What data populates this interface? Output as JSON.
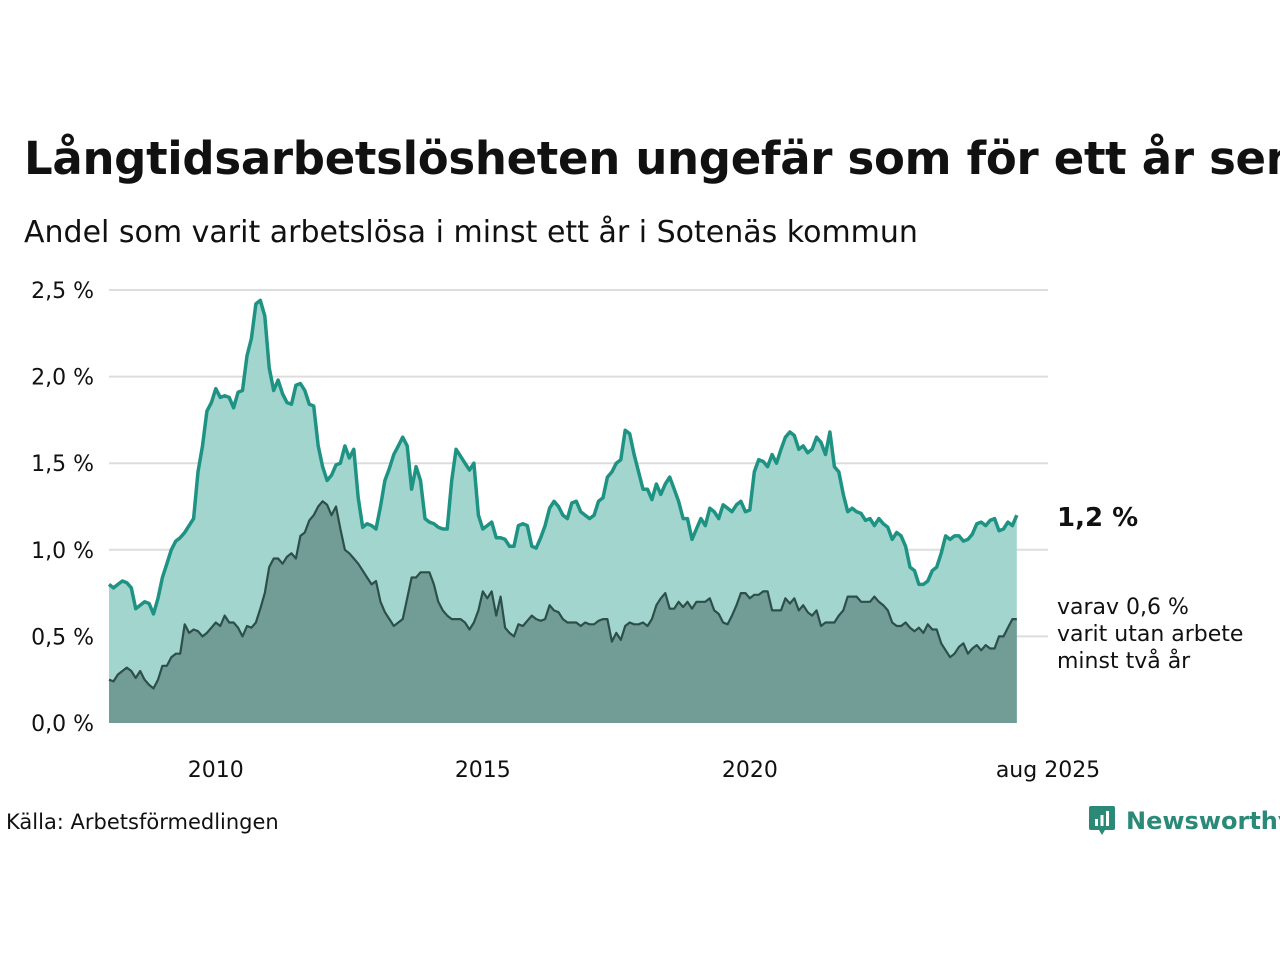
{
  "title": "Långtidsarbetslösheten ungefär som för ett år sen",
  "subtitle": "Andel som varit arbetslösa i minst ett år i Sotenäs kommun",
  "source": "Källa: Arbetsförmedlingen",
  "brand": "Newsworthy",
  "colors": {
    "series1_line": "#1f9383",
    "series1_fill": "#a3d5cf",
    "series2_line": "#2d4f49",
    "series2_fill": "#719d96",
    "grid": "#dddddd",
    "brand": "#2a8a77"
  },
  "chart_data": {
    "type": "area",
    "title": "Långtidsarbetslösheten ungefär som för ett år sen",
    "subtitle": "Andel som varit arbetslösa i minst ett år i Sotenäs kommun",
    "x_start": "2008-01",
    "x_end": "2025-08",
    "x_tick_labels": [
      "2010",
      "2015",
      "2020",
      "aug 2025"
    ],
    "x_tick_dates": [
      "2010-01",
      "2015-01",
      "2020-01",
      "2025-08"
    ],
    "y_ticks": [
      "0,0 %",
      "0,5 %",
      "1,0 %",
      "1,5 %",
      "2,0 %",
      "2,5 %"
    ],
    "y_tick_values": [
      0,
      0.5,
      1.0,
      1.5,
      2.0,
      2.5
    ],
    "ylim": [
      0,
      2.5
    ],
    "grid": true,
    "unit": "%",
    "end_labels": {
      "series1": "1,2 %",
      "series2": [
        "varav 0,6 %",
        "varit utan arbete",
        "minst två år"
      ]
    },
    "series": [
      {
        "key": "minst_ett_ar",
        "values": [
          0.8,
          0.78,
          0.8,
          0.82,
          0.81,
          0.78,
          0.66,
          0.68,
          0.7,
          0.69,
          0.63,
          0.72,
          0.84,
          0.92,
          1.0,
          1.05,
          1.07,
          1.1,
          1.14,
          1.18,
          1.45,
          1.6,
          1.8,
          1.85,
          1.93,
          1.88,
          1.89,
          1.88,
          1.82,
          1.91,
          1.92,
          2.12,
          2.22,
          2.42,
          2.44,
          2.35,
          2.05,
          1.92,
          1.98,
          1.9,
          1.85,
          1.84,
          1.95,
          1.96,
          1.92,
          1.84,
          1.83,
          1.6,
          1.48,
          1.4,
          1.43,
          1.49,
          1.5,
          1.6,
          1.53,
          1.58,
          1.3,
          1.13,
          1.15,
          1.14,
          1.12,
          1.25,
          1.4,
          1.47,
          1.55,
          1.6,
          1.65,
          1.6,
          1.35,
          1.48,
          1.4,
          1.18,
          1.16,
          1.15,
          1.13,
          1.12,
          1.12,
          1.4,
          1.58,
          1.54,
          1.5,
          1.46,
          1.5,
          1.2,
          1.12,
          1.14,
          1.16,
          1.07,
          1.07,
          1.06,
          1.02,
          1.02,
          1.14,
          1.15,
          1.14,
          1.02,
          1.01,
          1.07,
          1.14,
          1.24,
          1.28,
          1.25,
          1.2,
          1.18,
          1.27,
          1.28,
          1.22,
          1.2,
          1.18,
          1.2,
          1.28,
          1.3,
          1.42,
          1.45,
          1.5,
          1.52,
          1.69,
          1.67,
          1.55,
          1.45,
          1.35,
          1.35,
          1.29,
          1.38,
          1.32,
          1.38,
          1.42,
          1.35,
          1.28,
          1.18,
          1.18,
          1.06,
          1.12,
          1.18,
          1.14,
          1.24,
          1.22,
          1.18,
          1.26,
          1.24,
          1.22,
          1.26,
          1.28,
          1.22,
          1.23,
          1.45,
          1.52,
          1.51,
          1.48,
          1.55,
          1.5,
          1.58,
          1.65,
          1.68,
          1.66,
          1.58,
          1.6,
          1.56,
          1.58,
          1.65,
          1.62,
          1.55,
          1.68,
          1.48,
          1.45,
          1.32,
          1.22,
          1.24,
          1.22,
          1.21,
          1.17,
          1.18,
          1.14,
          1.18,
          1.15,
          1.13,
          1.06,
          1.1,
          1.08,
          1.02,
          0.9,
          0.88,
          0.8,
          0.8,
          0.82,
          0.88,
          0.9,
          0.98,
          1.08,
          1.06,
          1.08,
          1.08,
          1.05,
          1.06,
          1.09,
          1.15,
          1.16,
          1.14,
          1.17,
          1.18,
          1.11,
          1.12,
          1.16,
          1.14,
          1.2
        ]
      },
      {
        "key": "minst_tva_ar",
        "values": [
          0.25,
          0.24,
          0.28,
          0.3,
          0.32,
          0.3,
          0.26,
          0.3,
          0.25,
          0.22,
          0.2,
          0.25,
          0.33,
          0.33,
          0.38,
          0.4,
          0.4,
          0.57,
          0.52,
          0.54,
          0.53,
          0.5,
          0.52,
          0.55,
          0.58,
          0.56,
          0.62,
          0.58,
          0.58,
          0.55,
          0.5,
          0.56,
          0.55,
          0.58,
          0.66,
          0.75,
          0.9,
          0.95,
          0.95,
          0.92,
          0.96,
          0.98,
          0.95,
          1.08,
          1.1,
          1.17,
          1.2,
          1.25,
          1.28,
          1.26,
          1.2,
          1.25,
          1.12,
          1.0,
          0.98,
          0.95,
          0.92,
          0.88,
          0.84,
          0.8,
          0.82,
          0.7,
          0.64,
          0.6,
          0.56,
          0.58,
          0.6,
          0.72,
          0.84,
          0.84,
          0.87,
          0.87,
          0.87,
          0.8,
          0.7,
          0.65,
          0.62,
          0.6,
          0.6,
          0.6,
          0.58,
          0.54,
          0.58,
          0.65,
          0.76,
          0.72,
          0.76,
          0.62,
          0.73,
          0.55,
          0.52,
          0.5,
          0.57,
          0.56,
          0.59,
          0.62,
          0.6,
          0.59,
          0.6,
          0.68,
          0.65,
          0.64,
          0.6,
          0.58,
          0.58,
          0.58,
          0.56,
          0.58,
          0.57,
          0.57,
          0.59,
          0.6,
          0.6,
          0.47,
          0.52,
          0.48,
          0.56,
          0.58,
          0.57,
          0.57,
          0.58,
          0.56,
          0.6,
          0.68,
          0.72,
          0.75,
          0.66,
          0.66,
          0.7,
          0.67,
          0.7,
          0.66,
          0.7,
          0.7,
          0.7,
          0.72,
          0.65,
          0.63,
          0.58,
          0.57,
          0.62,
          0.68,
          0.75,
          0.75,
          0.72,
          0.74,
          0.74,
          0.76,
          0.76,
          0.65,
          0.65,
          0.65,
          0.72,
          0.69,
          0.72,
          0.65,
          0.68,
          0.64,
          0.62,
          0.65,
          0.56,
          0.58,
          0.58,
          0.58,
          0.62,
          0.65,
          0.73,
          0.73,
          0.73,
          0.7,
          0.7,
          0.7,
          0.73,
          0.7,
          0.68,
          0.65,
          0.58,
          0.56,
          0.56,
          0.58,
          0.55,
          0.53,
          0.55,
          0.52,
          0.57,
          0.54,
          0.54,
          0.46,
          0.42,
          0.38,
          0.4,
          0.44,
          0.46,
          0.4,
          0.43,
          0.45,
          0.42,
          0.45,
          0.43,
          0.43,
          0.5,
          0.5,
          0.55,
          0.6,
          0.6
        ]
      }
    ]
  }
}
